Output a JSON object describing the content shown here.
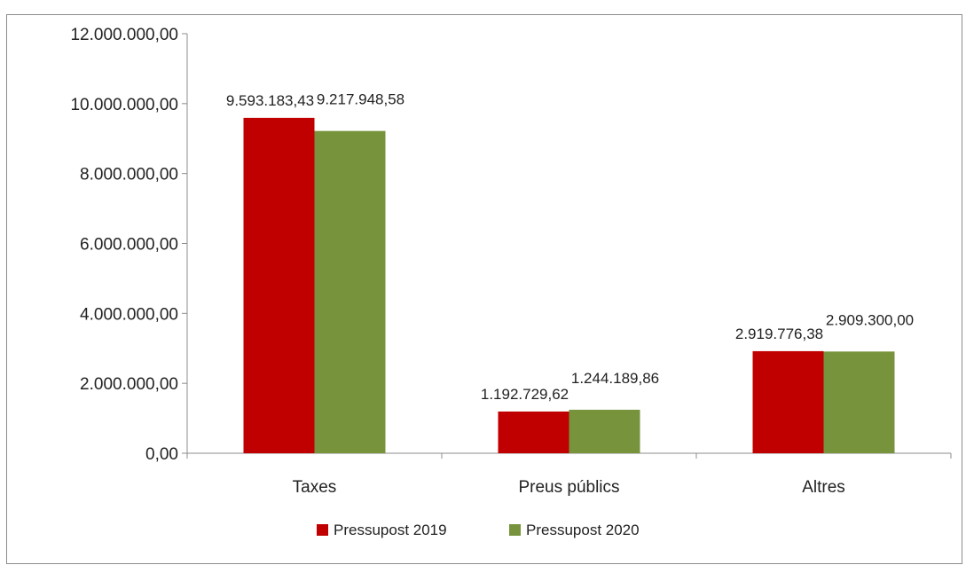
{
  "chart_data": {
    "type": "bar",
    "title": "",
    "xlabel": "",
    "ylabel": "",
    "categories": [
      "Taxes",
      "Preus públics",
      "Altres"
    ],
    "series": [
      {
        "name": "Pressupost 2019",
        "color": "#C00000",
        "values": [
          9593183.43,
          1192729.62,
          2919776.38
        ],
        "labels": [
          "9.593.183,43",
          "1.192.729,62",
          "2.919.776,38"
        ]
      },
      {
        "name": "Pressupost 2020",
        "color": "#77933C",
        "values": [
          9217948.58,
          1244189.86,
          2909300.0
        ],
        "labels": [
          "9.217.948,58",
          "1.244.189,86",
          "2.909.300,00"
        ]
      }
    ],
    "ylim": [
      0,
      12000000
    ],
    "yticks": [
      0,
      2000000,
      4000000,
      6000000,
      8000000,
      10000000,
      12000000
    ],
    "ytick_labels": [
      "0,00",
      "2.000.000,00",
      "4.000.000,00",
      "6.000.000,00",
      "8.000.000,00",
      "10.000.000,00",
      "12.000.000,00"
    ],
    "grid": false,
    "legend": "bottom-center"
  }
}
